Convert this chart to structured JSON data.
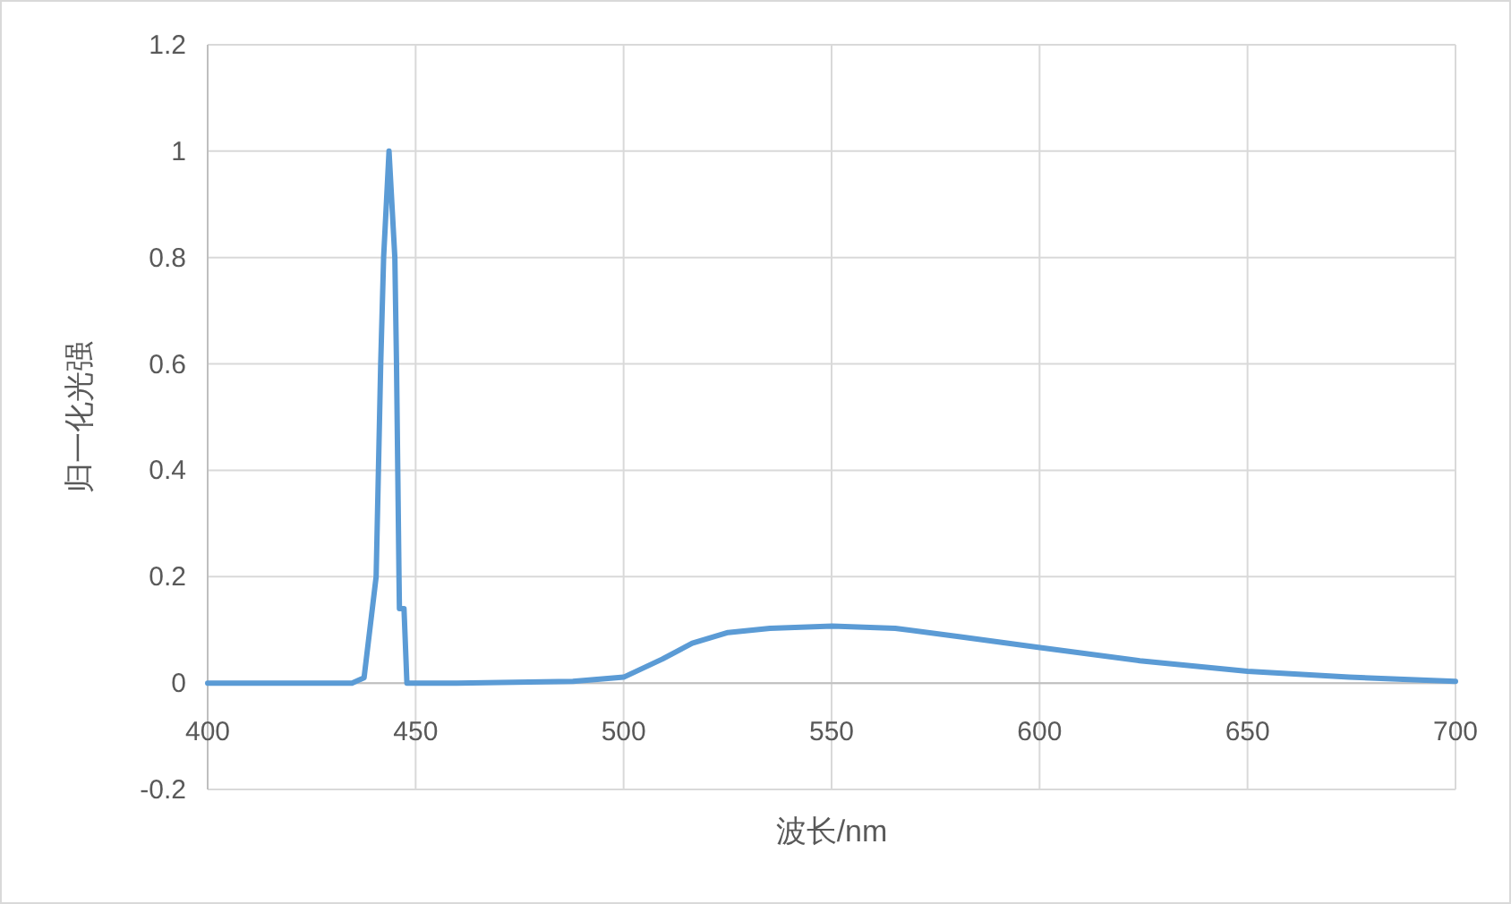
{
  "chart_data": {
    "type": "line",
    "xlabel": "波长/nm",
    "ylabel": "归一化光强",
    "x": [
      400,
      430,
      434.7,
      437.6,
      440.5,
      441.6,
      442.3,
      443.6,
      445.0,
      445.4,
      445.7,
      446.0,
      446.1,
      447.2,
      447.9,
      460,
      487.8,
      500,
      509.3,
      516.5,
      525.1,
      535.2,
      550.2,
      565.3,
      581,
      599.7,
      624.1,
      650,
      674.4,
      700
    ],
    "series": [
      {
        "color": "#5b9bd5",
        "values": [
          0,
          0,
          0,
          0.01,
          0.2,
          0.6,
          0.8,
          1.0,
          0.8,
          0.6,
          0.4,
          0.2,
          0.14,
          0.14,
          0,
          0,
          0.003,
          0.011,
          0.045,
          0.075,
          0.095,
          0.103,
          0.107,
          0.103,
          0.087,
          0.067,
          0.042,
          0.022,
          0.011,
          0.003
        ]
      }
    ],
    "xlim": [
      400,
      700
    ],
    "ylim": [
      -0.2,
      1.2
    ],
    "xticks": [
      400,
      450,
      500,
      550,
      600,
      650,
      700
    ],
    "yticks": [
      -0.2,
      0,
      0.2,
      0.4,
      0.6,
      0.8,
      1,
      1.2
    ],
    "grid": true,
    "line_style": "solid",
    "marker": "none"
  }
}
